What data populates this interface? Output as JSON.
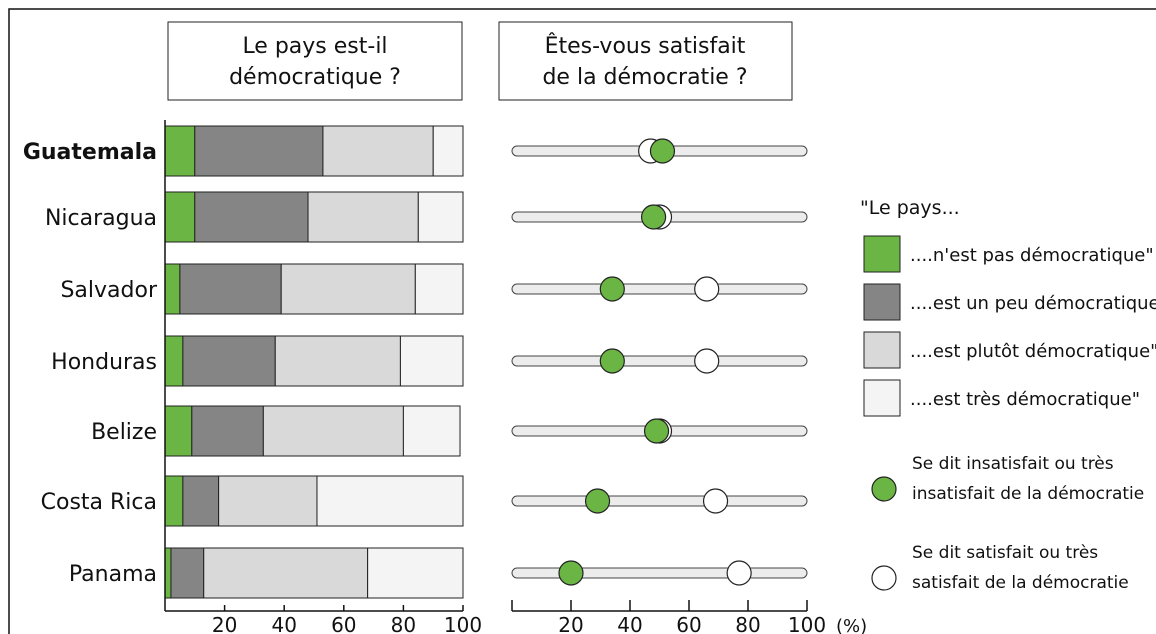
{
  "chart_data": [
    {
      "type": "bar",
      "stacked": true,
      "orientation": "horizontal",
      "title": "Le pays est-il démocratique ?",
      "title_lines": [
        "Le pays est-il",
        "démocratique ?"
      ],
      "categories": [
        "Guatemala",
        "Nicaragua",
        "Salvador",
        "Honduras",
        "Belize",
        "Costa Rica",
        "Panama"
      ],
      "highlight_category": "Guatemala",
      "series": [
        {
          "name": "....n'est pas démocratique\"",
          "color": "#6ab543",
          "values": [
            10,
            10,
            5,
            6,
            9,
            6,
            2
          ]
        },
        {
          "name": "....est un peu démocratique'",
          "color": "#858585",
          "values": [
            43,
            38,
            34,
            31,
            24,
            12,
            11
          ]
        },
        {
          "name": "....est plutôt démocratique\"",
          "color": "#d9d9d9",
          "values": [
            37,
            37,
            45,
            42,
            47,
            33,
            55
          ]
        },
        {
          "name": "....est très démocratique\"",
          "color": "#f4f4f4",
          "values": [
            10,
            15,
            16,
            21,
            19,
            49,
            32
          ]
        }
      ],
      "xlim": [
        0,
        100
      ],
      "xticks": [
        "20",
        "40",
        "60",
        "80",
        "100"
      ],
      "xtick_values": [
        20,
        40,
        60,
        80,
        100
      ],
      "grid": false
    },
    {
      "type": "scatter",
      "subtype": "dot-plot",
      "title": "Êtes-vous satisfait de la démocratie ?",
      "title_lines": [
        "Êtes-vous satisfait",
        "de la démocratie ?"
      ],
      "categories": [
        "Guatemala",
        "Nicaragua",
        "Salvador",
        "Honduras",
        "Belize",
        "Costa Rica",
        "Panama"
      ],
      "series": [
        {
          "name": "Se dit satisfait ou très satisfait de la démocratie",
          "color": "#ffffff",
          "values": [
            47,
            50,
            66,
            66,
            50,
            69,
            77
          ]
        },
        {
          "name": "Se dit insatisfait ou très insatisfait de la démocratie",
          "color": "#6ab543",
          "values": [
            51,
            48,
            34,
            34,
            49,
            29,
            20
          ]
        }
      ],
      "xlim": [
        0,
        100
      ],
      "xticks": [
        "20",
        "40",
        "60",
        "80",
        "100"
      ],
      "xtick_values": [
        20,
        40,
        60,
        80,
        100
      ],
      "xunit": "(%)",
      "grid": false
    }
  ],
  "legend": {
    "heading": "\"Le pays...",
    "placement": "right",
    "bar_items": [
      {
        "label": "....n'est pas démocratique\"",
        "color": "#6ab543"
      },
      {
        "label": "....est un peu démocratique'",
        "color": "#858585"
      },
      {
        "label": "....est plutôt démocratique\"",
        "color": "#d9d9d9"
      },
      {
        "label": "....est très démocratique\"",
        "color": "#f4f4f4"
      }
    ],
    "dot_items": [
      {
        "lines": [
          "Se dit insatisfait ou très",
          "insatisfait de la démocratie"
        ],
        "color": "#6ab543"
      },
      {
        "lines": [
          "Se dit satisfait ou très",
          "satisfait de la démocratie"
        ],
        "color": "#ffffff"
      }
    ]
  }
}
